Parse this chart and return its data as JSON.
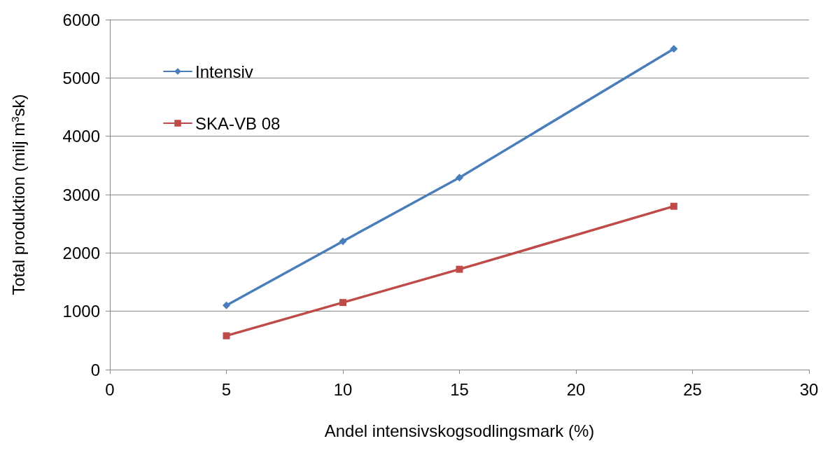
{
  "chart_data": {
    "type": "line",
    "xlabel": "Andel intensivskogsodlingsmark (%)",
    "ylabel": "Total produktion (milj m$^{3}$sk)",
    "series": [
      {
        "name": "Intensiv",
        "color": "#4a7ebb",
        "marker": "diamond",
        "x": [
          5,
          10,
          15,
          24.2
        ],
        "values": [
          1100,
          2200,
          3290,
          5500
        ]
      },
      {
        "name": "SKA-VB 08",
        "color": "#be4b48",
        "marker": "square",
        "x": [
          5,
          10,
          15,
          24.2
        ],
        "values": [
          580,
          1150,
          1720,
          2800
        ]
      }
    ],
    "xlim": [
      0,
      30
    ],
    "xticks": [
      0,
      5,
      10,
      15,
      20,
      25,
      30
    ],
    "ylim": [
      0,
      6000
    ],
    "yticks": [
      0,
      1000,
      2000,
      3000,
      4000,
      5000,
      6000
    ],
    "grid": "y",
    "legend": "top left",
    "line_style": "solid"
  }
}
